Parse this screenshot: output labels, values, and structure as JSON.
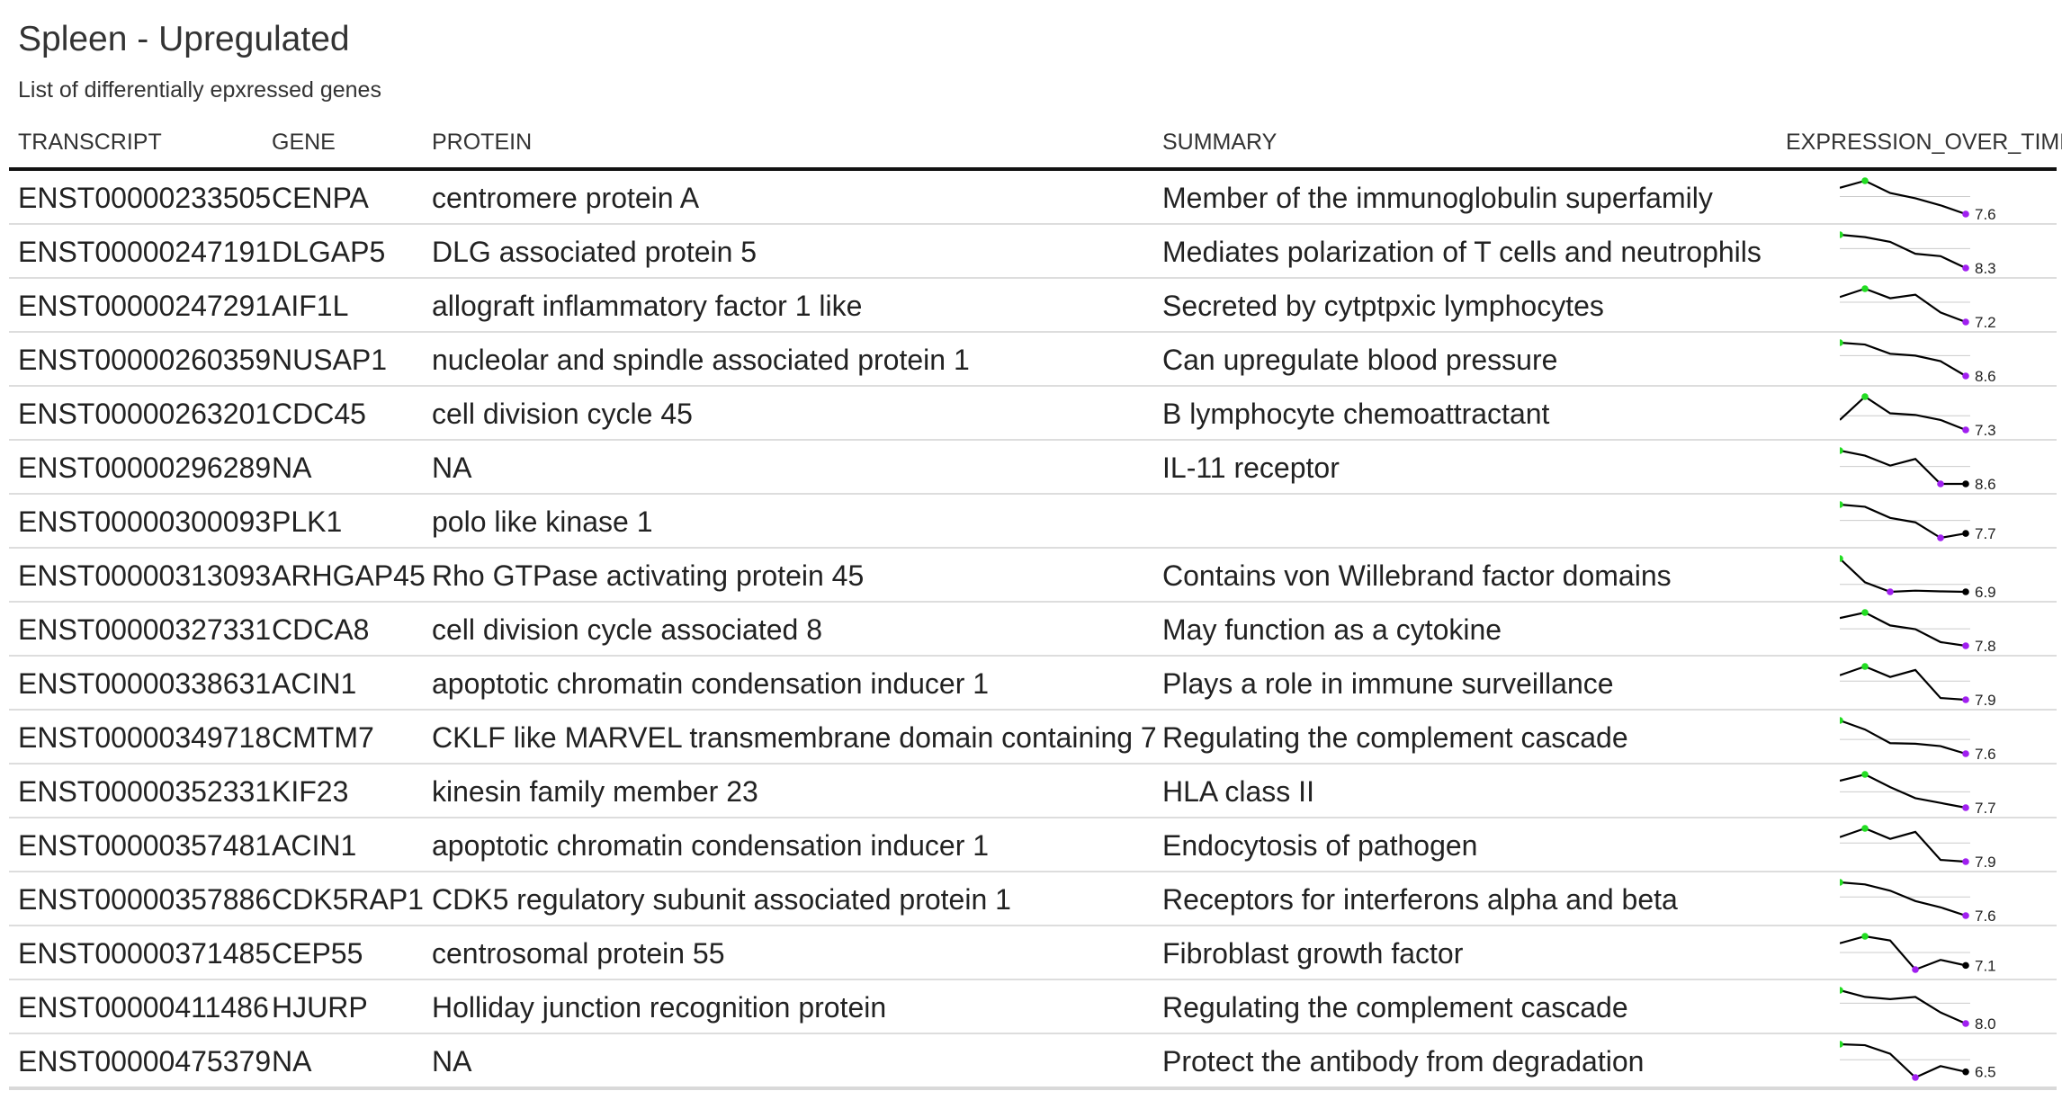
{
  "title": "Spleen - Upregulated",
  "subtitle": "List of differentially epxressed genes",
  "columns": [
    "TRANSCRIPT",
    "GENE",
    "PROTEIN",
    "SUMMARY",
    "EXPRESSION_OVER_TIME"
  ],
  "colors": {
    "line": "#000000",
    "max_point": "#22dd22",
    "min_point": "#a020f0",
    "last_point": "#000000",
    "reference": "#cccccc"
  },
  "rows": [
    {
      "transcript": "ENST00000233505",
      "gene": "CENPA",
      "protein": "centromere protein A",
      "summary": "Member of the immunoglobulin superfamily",
      "last_label": "7.6",
      "values": [
        8.35,
        8.55,
        8.2,
        8.05,
        7.85,
        7.6
      ]
    },
    {
      "transcript": "ENST00000247191",
      "gene": "DLGAP5",
      "protein": "DLG associated protein 5",
      "summary": "Mediates polarization of T cells and neutrophils",
      "last_label": "8.3",
      "values": [
        9.0,
        8.95,
        8.85,
        8.6,
        8.55,
        8.3
      ]
    },
    {
      "transcript": "ENST00000247291",
      "gene": "AIF1L",
      "protein": "allograft inflammatory factor 1 like",
      "summary": "Secreted by cytptpxic lymphocytes",
      "last_label": "7.2",
      "values": [
        8.25,
        8.6,
        8.2,
        8.35,
        7.6,
        7.2
      ]
    },
    {
      "transcript": "ENST00000260359",
      "gene": "NUSAP1",
      "protein": "nucleolar and spindle associated protein 1",
      "summary": "Can upregulate blood pressure",
      "last_label": "8.6",
      "values": [
        9.5,
        9.45,
        9.2,
        9.15,
        9.0,
        8.6
      ]
    },
    {
      "transcript": "ENST00000263201",
      "gene": "CDC45",
      "protein": "cell division cycle 45",
      "summary": "B lymphocyte chemoattractant",
      "last_label": "7.3",
      "values": [
        7.6,
        8.3,
        7.8,
        7.75,
        7.6,
        7.3
      ]
    },
    {
      "transcript": "ENST00000296289",
      "gene": "NA",
      "protein": "NA",
      "summary": "IL-11 receptor",
      "last_label": "8.6",
      "values": [
        9.6,
        9.45,
        9.15,
        9.35,
        8.6,
        8.6
      ]
    },
    {
      "transcript": "ENST00000300093",
      "gene": "PLK1",
      "protein": "polo like kinase 1",
      "summary": "",
      "last_label": "7.7",
      "values": [
        8.35,
        8.3,
        8.05,
        7.95,
        7.6,
        7.7
      ]
    },
    {
      "transcript": "ENST00000313093",
      "gene": "ARHGAP45",
      "protein": "Rho GTPase activating protein 45",
      "summary": "Contains von Willebrand factor domains",
      "last_label": "6.9",
      "values": [
        8.3,
        7.3,
        6.9,
        6.95,
        6.92,
        6.9
      ]
    },
    {
      "transcript": "ENST00000327331",
      "gene": "CDCA8",
      "protein": "cell division cycle associated 8",
      "summary": "May function as a cytokine",
      "last_label": "7.8",
      "values": [
        8.55,
        8.7,
        8.35,
        8.25,
        7.9,
        7.8
      ]
    },
    {
      "transcript": "ENST00000338631",
      "gene": "ACIN1",
      "protein": "apoptotic chromatin condensation inducer 1",
      "summary": "Plays a role in immune surveillance",
      "last_label": "7.9",
      "values": [
        8.6,
        8.85,
        8.55,
        8.75,
        7.95,
        7.9
      ]
    },
    {
      "transcript": "ENST00000349718",
      "gene": "CMTM7",
      "protein": "CKLF like MARVEL transmembrane domain containing 7",
      "summary": "Regulating the complement cascade",
      "last_label": "7.6",
      "values": [
        8.7,
        8.4,
        7.95,
        7.93,
        7.85,
        7.6
      ]
    },
    {
      "transcript": "ENST00000352331",
      "gene": "KIF23",
      "protein": "kinesin family member 23",
      "summary": "HLA class II",
      "last_label": "7.7",
      "values": [
        8.55,
        8.75,
        8.35,
        8.0,
        7.85,
        7.7
      ]
    },
    {
      "transcript": "ENST00000357481",
      "gene": "ACIN1",
      "protein": "apoptotic chromatin condensation inducer 1",
      "summary": "Endocytosis of pathogen",
      "last_label": "7.9",
      "values": [
        8.6,
        8.85,
        8.55,
        8.75,
        7.95,
        7.9
      ]
    },
    {
      "transcript": "ENST00000357886",
      "gene": "CDK5RAP1",
      "protein": "CDK5 regulatory subunit associated protein 1",
      "summary": "Receptors for interferons alpha and beta",
      "last_label": "7.6",
      "values": [
        8.4,
        8.35,
        8.2,
        7.95,
        7.8,
        7.6
      ]
    },
    {
      "transcript": "ENST00000371485",
      "gene": "CEP55",
      "protein": "centrosomal protein 55",
      "summary": "Fibroblast growth factor",
      "last_label": "7.1",
      "values": [
        7.9,
        8.15,
        8.0,
        6.95,
        7.3,
        7.1
      ]
    },
    {
      "transcript": "ENST00000411486",
      "gene": "HJURP",
      "protein": "Holliday junction recognition protein",
      "summary": "Regulating the complement cascade",
      "last_label": "8.0",
      "values": [
        8.75,
        8.6,
        8.55,
        8.6,
        8.25,
        8.0
      ]
    },
    {
      "transcript": "ENST00000475379",
      "gene": "NA",
      "protein": "NA",
      "summary": "Protect the antibody from degradation",
      "last_label": "6.5",
      "values": [
        7.95,
        7.9,
        7.45,
        6.2,
        6.8,
        6.5
      ]
    }
  ]
}
